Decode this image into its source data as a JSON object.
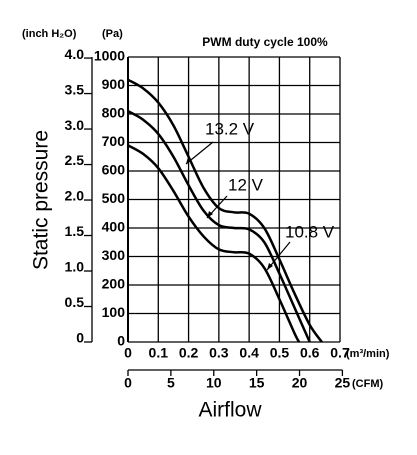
{
  "chart_data": {
    "type": "line",
    "title": "PWM duty cycle 100%",
    "y_label": "Static pressure",
    "x_label": "Airflow",
    "y_unit": "(Pa)",
    "y2_unit": "(inch H₂O)",
    "x_unit": "(m³/min)",
    "x2_unit": "(CFM)",
    "xlim": [
      0,
      0.7
    ],
    "xticks": [
      0,
      0.1,
      0.2,
      0.3,
      0.4,
      0.5,
      0.6,
      0.7
    ],
    "x2lim": [
      0,
      24.72
    ],
    "x2ticks": [
      0,
      5,
      10,
      15,
      20,
      25
    ],
    "ylim": [
      0,
      1000
    ],
    "yticks": [
      0,
      100,
      200,
      300,
      400,
      500,
      600,
      700,
      800,
      900,
      1000
    ],
    "y2lim": [
      0,
      4.015
    ],
    "y2ticks": [
      0,
      0.5,
      {
        "value": 1,
        "label": "1.0"
      },
      1.5,
      {
        "value": 2,
        "label": "2.0"
      },
      2.5,
      {
        "value": 3,
        "label": "3.0"
      },
      3.5,
      {
        "value": 4,
        "label": "4.0"
      }
    ],
    "grid": true,
    "color": "#000000",
    "series": [
      {
        "name": "13.2 V",
        "x": [
          0,
          0.05,
          0.1,
          0.15,
          0.2,
          0.25,
          0.3,
          0.35,
          0.4,
          0.45,
          0.5,
          0.55,
          0.6,
          0.64
        ],
        "values": [
          920,
          890,
          840,
          760,
          650,
          540,
          470,
          455,
          450,
          400,
          290,
          170,
          60,
          0
        ]
      },
      {
        "name": "12 V",
        "x": [
          0,
          0.05,
          0.1,
          0.15,
          0.2,
          0.25,
          0.3,
          0.35,
          0.4,
          0.45,
          0.5,
          0.55,
          0.6
        ],
        "values": [
          810,
          780,
          730,
          650,
          550,
          460,
          410,
          400,
          395,
          350,
          240,
          120,
          0
        ]
      },
      {
        "name": "10.8 V",
        "x": [
          0,
          0.05,
          0.1,
          0.15,
          0.2,
          0.25,
          0.3,
          0.35,
          0.4,
          0.45,
          0.5,
          0.55,
          0.565
        ],
        "values": [
          690,
          660,
          610,
          530,
          440,
          370,
          325,
          315,
          310,
          260,
          150,
          30,
          0
        ]
      }
    ]
  }
}
